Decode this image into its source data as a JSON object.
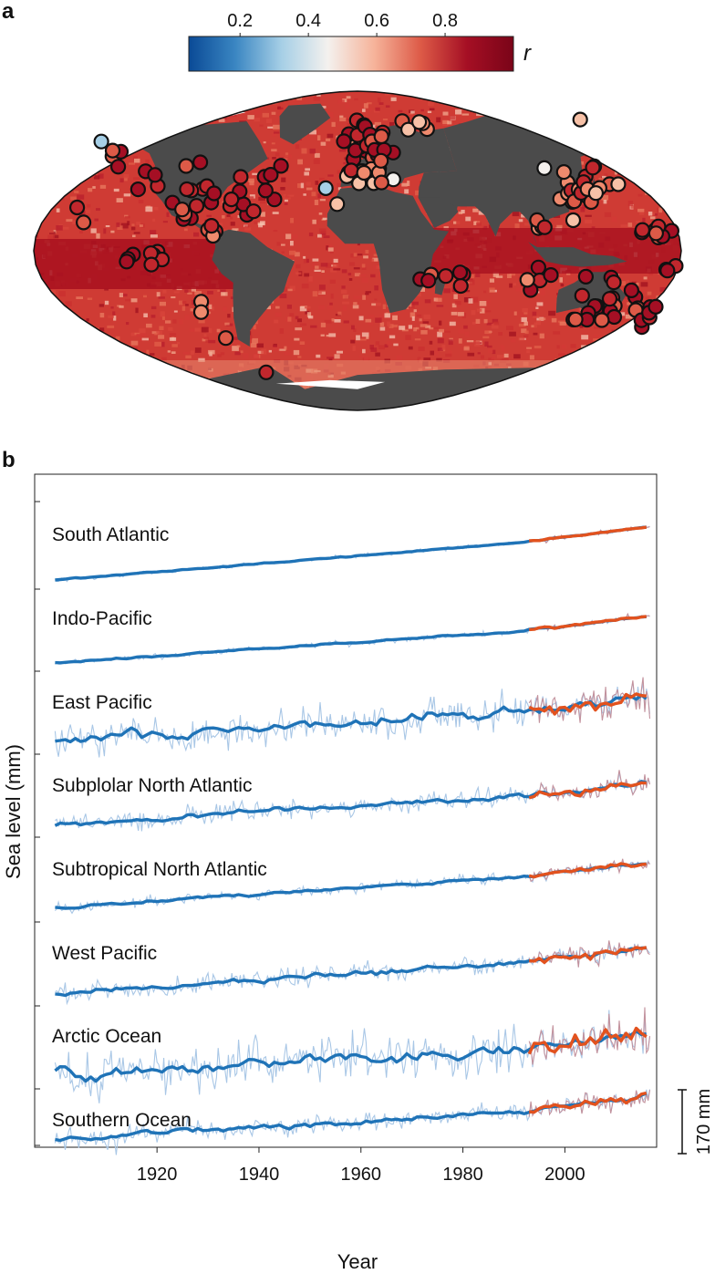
{
  "panel_a": {
    "label": "a",
    "colorbar": {
      "ticks": [
        "0.2",
        "0.4",
        "0.6",
        "0.8"
      ],
      "tick_values": [
        0.2,
        0.4,
        0.6,
        0.8
      ],
      "range": [
        0.05,
        1.0
      ],
      "symbol": "r",
      "colors": [
        "#0a4a96",
        "#3a86c2",
        "#a6cfe6",
        "#f4f1ee",
        "#f6b39a",
        "#dd5a47",
        "#a50f24",
        "#7a0418"
      ]
    },
    "map": {
      "land_color": "#4b4b4b",
      "ocean_base_color": "#cf3b34",
      "ice_color": "#ffffff"
    }
  },
  "panel_b": {
    "label": "b"
  },
  "chart_data": {
    "type": "line",
    "xlabel": "Year",
    "ylabel": "Sea level (mm)",
    "xlim": [
      1896,
      2018
    ],
    "xticks": [
      "1920",
      "1940",
      "1960",
      "1980",
      "2000"
    ],
    "xtick_values": [
      1920,
      1940,
      1960,
      1980,
      2000
    ],
    "scale_bar": {
      "label": "170 mm",
      "value_mm": 170
    },
    "series_colors": {
      "reconstruction": "#1f73b7",
      "altimetry": "#e2521e",
      "raw_reconstruction": "#a9c7e6",
      "raw_altimetry": "#c3929d"
    },
    "regions": [
      {
        "name": "South Atlantic",
        "start_mm": 0,
        "end_mm": 140,
        "noise_mm": 3
      },
      {
        "name": "Indo-Pacific",
        "start_mm": 0,
        "end_mm": 120,
        "noise_mm": 4
      },
      {
        "name": "East Pacific",
        "start_mm": 0,
        "end_mm": 110,
        "noise_mm": 28
      },
      {
        "name": "Subplolar North Atlantic",
        "start_mm": 0,
        "end_mm": 110,
        "noise_mm": 14
      },
      {
        "name": "Subtropical North Atlantic",
        "start_mm": 0,
        "end_mm": 115,
        "noise_mm": 8
      },
      {
        "name": "West Pacific",
        "start_mm": 0,
        "end_mm": 120,
        "noise_mm": 14
      },
      {
        "name": "Arctic Ocean",
        "start_mm": 0,
        "end_mm": 100,
        "noise_mm": 35
      },
      {
        "name": "Southern Ocean",
        "start_mm": 0,
        "end_mm": 110,
        "noise_mm": 14
      }
    ],
    "reconstruction_years": [
      1900,
      2016
    ],
    "altimetry_years": [
      1993,
      2016
    ]
  }
}
